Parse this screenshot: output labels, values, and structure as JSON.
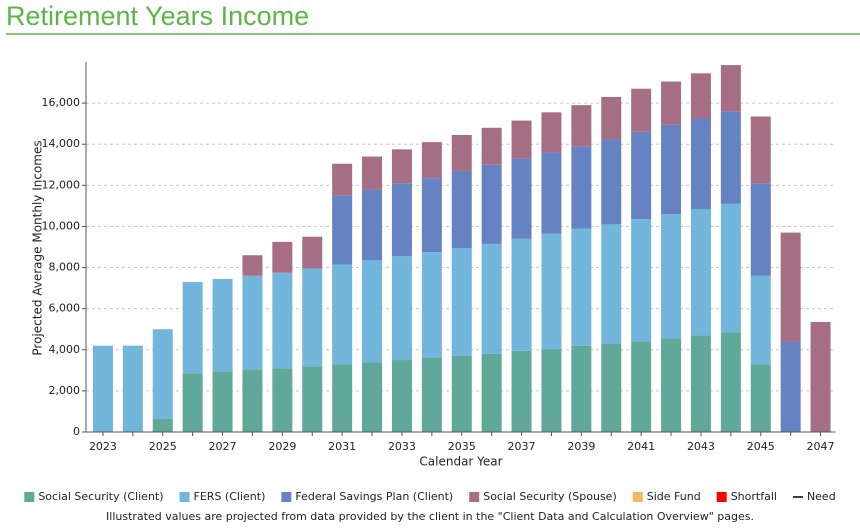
{
  "chart_data": {
    "type": "stacked_bar",
    "title": "Retirement Years Income",
    "ylabel": "Projected Average Monthly Incomes",
    "xlabel": "Calendar Year",
    "categories": [
      2023,
      null,
      2025,
      null,
      2027,
      null,
      2029,
      null,
      2031,
      null,
      2033,
      null,
      2035,
      null,
      2037,
      null,
      2039,
      null,
      2041,
      null,
      2043,
      null,
      2045,
      null,
      2047
    ],
    "series": [
      {
        "name": "Social Security (Client)",
        "color": "#5fa89a",
        "values": [
          0,
          0,
          650,
          2850,
          2950,
          3050,
          3100,
          3200,
          3300,
          3400,
          3500,
          3600,
          3700,
          3800,
          3950,
          4050,
          4200,
          4300,
          4400,
          4550,
          4700,
          4850,
          3300,
          0,
          0
        ]
      },
      {
        "name": "FERS (Client)",
        "color": "#72b6dc",
        "values": [
          4200,
          4200,
          4350,
          4450,
          4500,
          4550,
          4650,
          4750,
          4850,
          4950,
          5050,
          5150,
          5250,
          5350,
          5450,
          5600,
          5700,
          5800,
          5950,
          6050,
          6150,
          6250,
          4300,
          0,
          0
        ]
      },
      {
        "name": "Federal Savings Plan (Client)",
        "color": "#6582c2",
        "values": [
          0,
          0,
          0,
          0,
          0,
          0,
          0,
          0,
          3350,
          3450,
          3550,
          3600,
          3750,
          3850,
          3900,
          3950,
          4000,
          4150,
          4250,
          4350,
          4400,
          4500,
          4500,
          4400,
          0
        ]
      },
      {
        "name": "Social Security (Spouse)",
        "color": "#a56e85",
        "values": [
          0,
          0,
          0,
          0,
          0,
          1000,
          1500,
          1550,
          1550,
          1600,
          1650,
          1750,
          1750,
          1800,
          1850,
          1950,
          2000,
          2050,
          2100,
          2100,
          2200,
          2250,
          3250,
          5300,
          5350
        ]
      }
    ],
    "legend_extra": [
      {
        "name": "Side Fund",
        "color": "#f0b866",
        "marker": "box"
      },
      {
        "name": "Shortfall",
        "color": "#ff0000",
        "marker": "box"
      },
      {
        "name": "Need",
        "color": "#000000",
        "marker": "line"
      }
    ],
    "ylim": [
      0,
      18000
    ],
    "yticks": [
      0,
      {
        "value": 2000,
        "label": "2,000"
      },
      {
        "value": 4000,
        "label": "4,000"
      },
      {
        "value": 6000,
        "label": "6,000"
      },
      {
        "value": 8000,
        "label": "8,000"
      },
      {
        "value": 10000,
        "label": "10,000"
      },
      {
        "value": 12000,
        "label": "12,000"
      },
      {
        "value": 14000,
        "label": "14,000"
      },
      {
        "value": 16000,
        "label": "16,000"
      }
    ],
    "grid": true,
    "footnote": "Illustrated values are projected from data provided by the client in the \"Client Data and Calculation Overview\" pages."
  }
}
